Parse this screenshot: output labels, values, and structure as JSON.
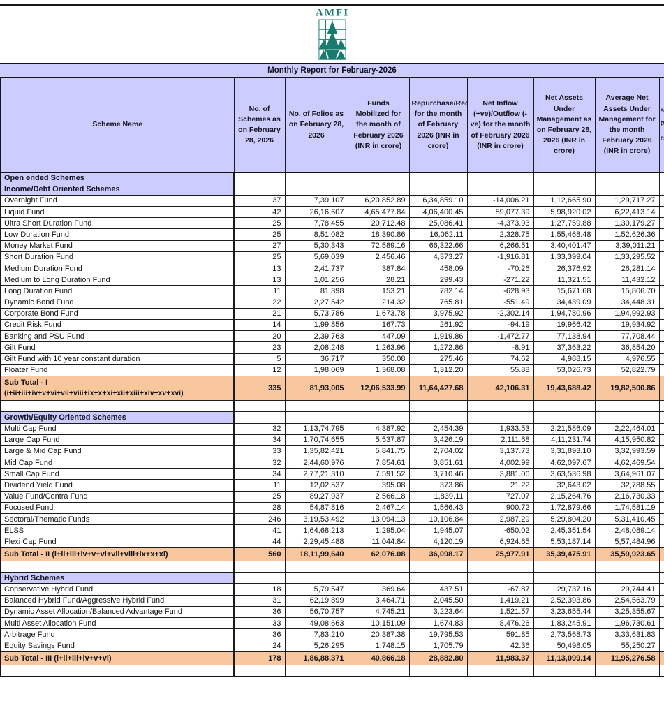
{
  "logo": {
    "text": "AMFI",
    "color": "#177B6E"
  },
  "banner": {
    "title": "Monthly Report for February-2026",
    "bg": "#CCCCFF"
  },
  "colors": {
    "header_bg": "#CCCCFF",
    "section_bg": "#CCCCFF",
    "subtotal_bg": "#F8C79E",
    "border": "#1c1c1c"
  },
  "table": {
    "columns": [
      {
        "id": "scheme_name",
        "label": "Scheme Name"
      },
      {
        "id": "num_schemes",
        "label": "No. of Schemes as on February 28, 2026"
      },
      {
        "id": "num_folios",
        "label": "No. of Folios as on February 28, 2026"
      },
      {
        "id": "funds_mobilized",
        "label": "Funds Mobilized for the month of February 2026 (INR in crore)"
      },
      {
        "id": "repurchase",
        "label": "Repurchase/Redemption for the month of February 2026 (INR in crore)"
      },
      {
        "id": "net_inflow",
        "label": "Net Inflow (+ve)/Outflow (-ve) for the month of February 2026 (INR in crore)"
      },
      {
        "id": "net_aum",
        "label": "Net Assets Under Management as on February 28, 2026 (INR in crore)"
      },
      {
        "id": "avg_aum",
        "label": "Average Net Assets Under Management for the month February 2026 (INR in crore)"
      }
    ],
    "partial_column": {
      "fragments": [
        "s",
        "P",
        "c"
      ]
    },
    "rows": [
      {
        "type": "section",
        "label": "Open ended Schemes"
      },
      {
        "type": "section",
        "label": "Income/Debt Oriented Schemes"
      },
      {
        "type": "data",
        "label": "Overnight Fund",
        "values": [
          "37",
          "7,39,107",
          "6,20,852.89",
          "6,34,859.10",
          "-14,006.21",
          "1,12,665.90",
          "1,29,717.27"
        ]
      },
      {
        "type": "data",
        "label": "Liquid Fund",
        "values": [
          "42",
          "26,16,607",
          "4,65,477.84",
          "4,06,400.45",
          "59,077.39",
          "5,98,920.02",
          "6,22,413.14"
        ]
      },
      {
        "type": "data",
        "label": "Ultra Short Duration Fund",
        "values": [
          "25",
          "7,78,455",
          "20,712.48",
          "25,086.41",
          "-4,373.93",
          "1,27,759.88",
          "1,30,179.27"
        ]
      },
      {
        "type": "data",
        "label": "Low Duration Fund",
        "values": [
          "25",
          "8,51,082",
          "18,390.86",
          "16,062.11",
          "2,328.75",
          "1,55,468.48",
          "1,52,626.36"
        ]
      },
      {
        "type": "data",
        "label": "Money Market Fund",
        "values": [
          "27",
          "5,30,343",
          "72,589.16",
          "66,322.66",
          "6,266.51",
          "3,40,401.47",
          "3,39,011.21"
        ]
      },
      {
        "type": "data",
        "label": "Short Duration Fund",
        "values": [
          "25",
          "5,69,039",
          "2,456.46",
          "4,373.27",
          "-1,916.81",
          "1,33,399.04",
          "1,33,295.52"
        ]
      },
      {
        "type": "data",
        "label": "Medium Duration Fund",
        "values": [
          "13",
          "2,41,737",
          "387.84",
          "458.09",
          "-70.26",
          "26,376.92",
          "26,281.14"
        ]
      },
      {
        "type": "data",
        "label": "Medium to Long Duration Fund",
        "values": [
          "13",
          "1,01,256",
          "28.21",
          "299.43",
          "-271.22",
          "11,321.51",
          "11,432.12"
        ]
      },
      {
        "type": "data",
        "label": "Long Duration Fund",
        "values": [
          "11",
          "81,398",
          "153.21",
          "782.14",
          "-628.93",
          "15,671.68",
          "15,806.70"
        ]
      },
      {
        "type": "data",
        "label": "Dynamic Bond Fund",
        "values": [
          "22",
          "2,27,542",
          "214.32",
          "765.81",
          "-551.49",
          "34,439.09",
          "34,448.31"
        ]
      },
      {
        "type": "data",
        "label": "Corporate Bond Fund",
        "values": [
          "21",
          "5,73,786",
          "1,673.78",
          "3,975.92",
          "-2,302.14",
          "1,94,780.96",
          "1,94,992.93"
        ]
      },
      {
        "type": "data",
        "label": "Credit Risk Fund",
        "values": [
          "14",
          "1,99,856",
          "167.73",
          "261.92",
          "-94.19",
          "19,966.42",
          "19,934.92"
        ]
      },
      {
        "type": "data",
        "label": "Banking and PSU Fund",
        "values": [
          "20",
          "2,39,763",
          "447.09",
          "1,919.86",
          "-1,472.77",
          "77,138.94",
          "77,708.44"
        ]
      },
      {
        "type": "data",
        "label": "Gilt Fund",
        "values": [
          "23",
          "2,08,248",
          "1,263.96",
          "1,272.86",
          "-8.91",
          "37,363.22",
          "36,854.20"
        ]
      },
      {
        "type": "data",
        "label": "Gilt Fund with 10 year constant duration",
        "values": [
          "5",
          "36,717",
          "350.08",
          "275.46",
          "74.62",
          "4,988.15",
          "4,976.55"
        ]
      },
      {
        "type": "data",
        "label": "Floater Fund",
        "values": [
          "12",
          "1,98,069",
          "1,368.08",
          "1,312.20",
          "55.88",
          "53,026.73",
          "52,822.79"
        ]
      },
      {
        "type": "subtotal",
        "label": "Sub Total - I",
        "label2": "(i+ii+iii+iv+v+vi+vii+viii+ix+x+xi+xii+xiii+xiv+xv+xvi)",
        "values": [
          "335",
          "81,93,005",
          "12,06,533.99",
          "11,64,427.68",
          "42,106.31",
          "19,43,688.42",
          "19,82,500.86"
        ]
      },
      {
        "type": "spacer"
      },
      {
        "type": "section",
        "label": "Growth/Equity Oriented Schemes"
      },
      {
        "type": "data",
        "label": "Multi Cap Fund",
        "values": [
          "32",
          "1,13,74,795",
          "4,387.92",
          "2,454.39",
          "1,933.53",
          "2,21,586.09",
          "2,22,464.01"
        ]
      },
      {
        "type": "data",
        "label": "Large Cap Fund",
        "values": [
          "34",
          "1,70,74,655",
          "5,537.87",
          "3,426.19",
          "2,111.68",
          "4,11,231.74",
          "4,15,950.82"
        ]
      },
      {
        "type": "data",
        "label": "Large & Mid Cap Fund",
        "values": [
          "33",
          "1,35,82,421",
          "5,841.75",
          "2,704.02",
          "3,137.73",
          "3,31,893.10",
          "3,32,993.59"
        ]
      },
      {
        "type": "data",
        "label": "Mid Cap Fund",
        "values": [
          "32",
          "2,44,60,976",
          "7,854.61",
          "3,851.61",
          "4,002.99",
          "4,62,097.67",
          "4,62,469.54"
        ]
      },
      {
        "type": "data",
        "label": "Small Cap Fund",
        "values": [
          "34",
          "2,77,21,310",
          "7,591.52",
          "3,710.46",
          "3,881.06",
          "3,63,536.98",
          "3,64,961.07"
        ]
      },
      {
        "type": "data",
        "label": "Dividend Yield Fund",
        "values": [
          "11",
          "12,02,537",
          "395.08",
          "373.86",
          "21.22",
          "32,643.02",
          "32,788.55"
        ]
      },
      {
        "type": "data",
        "label": "Value Fund/Contra Fund",
        "values": [
          "25",
          "89,27,937",
          "2,566.18",
          "1,839.11",
          "727.07",
          "2,15,264.76",
          "2,16,730.33"
        ]
      },
      {
        "type": "data",
        "label": "Focused Fund",
        "values": [
          "28",
          "54,87,816",
          "2,467.14",
          "1,566.43",
          "900.72",
          "1,72,879.66",
          "1,74,581.19"
        ]
      },
      {
        "type": "data",
        "label": "Sectoral/Thematic Funds",
        "values": [
          "246",
          "3,19,53,492",
          "13,094.13",
          "10,106.84",
          "2,987.29",
          "5,29,804.20",
          "5,31,410.45"
        ]
      },
      {
        "type": "data",
        "label": "ELSS",
        "values": [
          "41",
          "1,64,68,213",
          "1,295.04",
          "1,945.07",
          "-650.02",
          "2,45,351.54",
          "2,48,089.14"
        ]
      },
      {
        "type": "data",
        "label": "Flexi Cap Fund",
        "values": [
          "44",
          "2,29,45,488",
          "11,044.84",
          "4,120.19",
          "6,924.65",
          "5,53,187.14",
          "5,57,484.96"
        ]
      },
      {
        "type": "subtotal",
        "label": "Sub Total - II (i+ii+iii+iv+v+vi+vii+viii+ix+x+xi)",
        "values": [
          "560",
          "18,11,99,640",
          "62,076.08",
          "36,098.17",
          "25,977.91",
          "35,39,475.91",
          "35,59,923.65"
        ]
      },
      {
        "type": "spacer"
      },
      {
        "type": "section",
        "label": "Hybrid Schemes"
      },
      {
        "type": "data",
        "label": "Conservative Hybrid Fund",
        "values": [
          "18",
          "5,79,547",
          "369.64",
          "437.51",
          "-67.87",
          "29,737.16",
          "29,744.41"
        ]
      },
      {
        "type": "data",
        "label": "Balanced Hybrid Fund/Aggressive Hybrid Fund",
        "values": [
          "31",
          "62,19,899",
          "3,464.71",
          "2,045.50",
          "1,419.21",
          "2,52,393.86",
          "2,54,563.79"
        ]
      },
      {
        "type": "data",
        "label": "Dynamic Asset Allocation/Balanced Advantage Fund",
        "values": [
          "36",
          "56,70,757",
          "4,745.21",
          "3,223.64",
          "1,521.57",
          "3,23,655.44",
          "3,25,355.67"
        ]
      },
      {
        "type": "data",
        "label": "Multi Asset Allocation Fund",
        "values": [
          "33",
          "49,08,663",
          "10,151.09",
          "1,674.83",
          "8,476.26",
          "1,83,245.91",
          "1,96,730.61"
        ]
      },
      {
        "type": "data",
        "label": "Arbitrage Fund",
        "values": [
          "36",
          "7,83,210",
          "20,387.38",
          "19,795.53",
          "591.85",
          "2,73,568.73",
          "3,33,631.83"
        ]
      },
      {
        "type": "data",
        "label": "Equity Savings Fund",
        "values": [
          "24",
          "5,26,295",
          "1,748.15",
          "1,705.79",
          "42.36",
          "50,498.05",
          "55,250.27"
        ]
      },
      {
        "type": "subtotal",
        "label": "Sub Total - III (i+ii+iii+iv+v+vi)",
        "values": [
          "178",
          "1,86,88,371",
          "40,866.18",
          "28,882.80",
          "11,983.37",
          "11,13,099.14",
          "11,95,276.58"
        ]
      },
      {
        "type": "spacer"
      }
    ]
  }
}
